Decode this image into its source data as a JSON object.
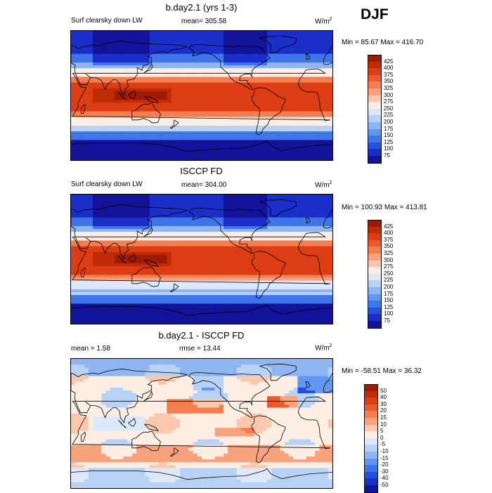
{
  "season": "DJF",
  "panels": [
    {
      "id": "model",
      "title": "b.day2.1 (yrs 1-3)",
      "left_label": "Surf clearsky down LW",
      "center_label": "mean= 305.58",
      "right_label": "W/m",
      "unit_sup": "2",
      "minmax": "Min =  85.67 Max = 416.70",
      "levels": [
        "425",
        "400",
        "375",
        "350",
        "325",
        "300",
        "275",
        "250",
        "225",
        "200",
        "175",
        "150",
        "125",
        "100",
        "75"
      ],
      "colors": [
        "#9e1a00",
        "#bf2b05",
        "#dc3d12",
        "#ea5a2c",
        "#f47e50",
        "#f9a27e",
        "#fbc8ad",
        "#fdeee4",
        "#dde9fa",
        "#b8d2f6",
        "#8fb6f2",
        "#6397ee",
        "#3f75e8",
        "#2452dd",
        "#1a2fc8",
        "#13139a"
      ],
      "kind": "lw"
    },
    {
      "id": "obs",
      "title": "ISCCP FD",
      "left_label": "Surf clearsky down LW",
      "center_label": "mean= 304.00",
      "right_label": "W/m",
      "unit_sup": "2",
      "minmax": "Min = 100.93 Max = 413.81",
      "levels": [
        "425",
        "400",
        "375",
        "350",
        "325",
        "300",
        "275",
        "250",
        "225",
        "200",
        "175",
        "150",
        "125",
        "100",
        "75"
      ],
      "colors": [
        "#9e1a00",
        "#bf2b05",
        "#dc3d12",
        "#ea5a2c",
        "#f47e50",
        "#f9a27e",
        "#fbc8ad",
        "#fdeee4",
        "#dde9fa",
        "#b8d2f6",
        "#8fb6f2",
        "#6397ee",
        "#3f75e8",
        "#2452dd",
        "#1a2fc8",
        "#13139a"
      ],
      "kind": "lw"
    },
    {
      "id": "diff",
      "title": "b.day2.1 - ISCCP FD",
      "left_label": "mean =   1.58",
      "center_label": "rmse =  13.44",
      "right_label": "W/m",
      "unit_sup": "2",
      "minmax": "Min = -58.51 Max =  36.32",
      "levels": [
        "50",
        "40",
        "30",
        "20",
        "15",
        "10",
        "5",
        "0",
        "-5",
        "-10",
        "-15",
        "-20",
        "-30",
        "-40",
        "-50"
      ],
      "colors": [
        "#9e1a00",
        "#bf2b05",
        "#dc3d12",
        "#ea5a2c",
        "#f47e50",
        "#f9a27e",
        "#fbc8ad",
        "#fdeee4",
        "#dde9fa",
        "#b8d2f6",
        "#8fb6f2",
        "#6397ee",
        "#3f75e8",
        "#2452dd",
        "#1a2fc8",
        "#13139a"
      ],
      "kind": "diff"
    }
  ],
  "chart_data": [
    {
      "type": "heatmap",
      "title": "b.day2.1 (yrs 1-3)",
      "variable": "Surf clearsky down LW",
      "units": "W/m2",
      "mean": 305.58,
      "min": 85.67,
      "max": 416.7,
      "contour_levels": [
        75,
        100,
        125,
        150,
        175,
        200,
        225,
        250,
        275,
        300,
        325,
        350,
        375,
        400,
        425
      ]
    },
    {
      "type": "heatmap",
      "title": "ISCCP FD",
      "variable": "Surf clearsky down LW",
      "units": "W/m2",
      "mean": 304.0,
      "min": 100.93,
      "max": 413.81,
      "contour_levels": [
        75,
        100,
        125,
        150,
        175,
        200,
        225,
        250,
        275,
        300,
        325,
        350,
        375,
        400,
        425
      ]
    },
    {
      "type": "heatmap",
      "title": "b.day2.1 - ISCCP FD",
      "units": "W/m2",
      "mean": 1.58,
      "rmse": 13.44,
      "min": -58.51,
      "max": 36.32,
      "contour_levels": [
        -50,
        -40,
        -30,
        -20,
        -15,
        -10,
        -5,
        0,
        5,
        10,
        15,
        20,
        30,
        40,
        50
      ]
    }
  ]
}
